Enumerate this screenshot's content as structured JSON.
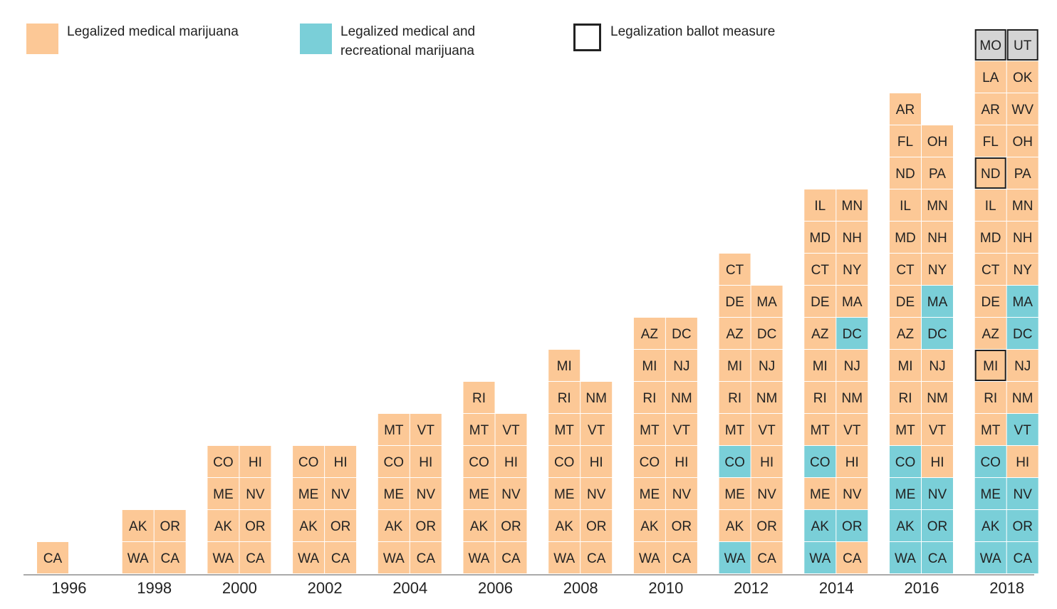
{
  "legend": {
    "medical_label": "Legalized medical marijuana",
    "recreational_label_line1": "Legalized medical and",
    "recreational_label_line2": "recreational marijuana",
    "ballot_label": "Legalization ballot measure"
  },
  "colors": {
    "medical": "#fcc896",
    "recreational": "#7acfd8",
    "ballot_pending": "#d4d4d4",
    "ballot_border": "#222222",
    "axis": "#aaaaaa"
  },
  "chart_data": {
    "type": "table",
    "note_status": "M = legalized medical marijuana, R = legalized medical and recreational marijuana, B = legalization ballot measure (not yet legal)",
    "columns": [
      {
        "year": "1996",
        "rows": [
          [
            {
              "s": "CA",
              "t": "M"
            }
          ]
        ]
      },
      {
        "year": "1998",
        "rows": [
          [
            {
              "s": "WA",
              "t": "M"
            },
            {
              "s": "CA",
              "t": "M"
            }
          ],
          [
            {
              "s": "AK",
              "t": "M"
            },
            {
              "s": "OR",
              "t": "M"
            }
          ]
        ]
      },
      {
        "year": "2000",
        "rows": [
          [
            {
              "s": "WA",
              "t": "M"
            },
            {
              "s": "CA",
              "t": "M"
            }
          ],
          [
            {
              "s": "AK",
              "t": "M"
            },
            {
              "s": "OR",
              "t": "M"
            }
          ],
          [
            {
              "s": "ME",
              "t": "M"
            },
            {
              "s": "NV",
              "t": "M"
            }
          ],
          [
            {
              "s": "CO",
              "t": "M"
            },
            {
              "s": "HI",
              "t": "M"
            }
          ]
        ]
      },
      {
        "year": "2002",
        "rows": [
          [
            {
              "s": "WA",
              "t": "M"
            },
            {
              "s": "CA",
              "t": "M"
            }
          ],
          [
            {
              "s": "AK",
              "t": "M"
            },
            {
              "s": "OR",
              "t": "M"
            }
          ],
          [
            {
              "s": "ME",
              "t": "M"
            },
            {
              "s": "NV",
              "t": "M"
            }
          ],
          [
            {
              "s": "CO",
              "t": "M"
            },
            {
              "s": "HI",
              "t": "M"
            }
          ]
        ]
      },
      {
        "year": "2004",
        "rows": [
          [
            {
              "s": "WA",
              "t": "M"
            },
            {
              "s": "CA",
              "t": "M"
            }
          ],
          [
            {
              "s": "AK",
              "t": "M"
            },
            {
              "s": "OR",
              "t": "M"
            }
          ],
          [
            {
              "s": "ME",
              "t": "M"
            },
            {
              "s": "NV",
              "t": "M"
            }
          ],
          [
            {
              "s": "CO",
              "t": "M"
            },
            {
              "s": "HI",
              "t": "M"
            }
          ],
          [
            {
              "s": "MT",
              "t": "M"
            },
            {
              "s": "VT",
              "t": "M"
            }
          ]
        ]
      },
      {
        "year": "2006",
        "rows": [
          [
            {
              "s": "WA",
              "t": "M"
            },
            {
              "s": "CA",
              "t": "M"
            }
          ],
          [
            {
              "s": "AK",
              "t": "M"
            },
            {
              "s": "OR",
              "t": "M"
            }
          ],
          [
            {
              "s": "ME",
              "t": "M"
            },
            {
              "s": "NV",
              "t": "M"
            }
          ],
          [
            {
              "s": "CO",
              "t": "M"
            },
            {
              "s": "HI",
              "t": "M"
            }
          ],
          [
            {
              "s": "MT",
              "t": "M"
            },
            {
              "s": "VT",
              "t": "M"
            }
          ],
          [
            {
              "s": "RI",
              "t": "M"
            }
          ]
        ]
      },
      {
        "year": "2008",
        "rows": [
          [
            {
              "s": "WA",
              "t": "M"
            },
            {
              "s": "CA",
              "t": "M"
            }
          ],
          [
            {
              "s": "AK",
              "t": "M"
            },
            {
              "s": "OR",
              "t": "M"
            }
          ],
          [
            {
              "s": "ME",
              "t": "M"
            },
            {
              "s": "NV",
              "t": "M"
            }
          ],
          [
            {
              "s": "CO",
              "t": "M"
            },
            {
              "s": "HI",
              "t": "M"
            }
          ],
          [
            {
              "s": "MT",
              "t": "M"
            },
            {
              "s": "VT",
              "t": "M"
            }
          ],
          [
            {
              "s": "RI",
              "t": "M"
            },
            {
              "s": "NM",
              "t": "M"
            }
          ],
          [
            {
              "s": "MI",
              "t": "M"
            }
          ]
        ]
      },
      {
        "year": "2010",
        "rows": [
          [
            {
              "s": "WA",
              "t": "M"
            },
            {
              "s": "CA",
              "t": "M"
            }
          ],
          [
            {
              "s": "AK",
              "t": "M"
            },
            {
              "s": "OR",
              "t": "M"
            }
          ],
          [
            {
              "s": "ME",
              "t": "M"
            },
            {
              "s": "NV",
              "t": "M"
            }
          ],
          [
            {
              "s": "CO",
              "t": "M"
            },
            {
              "s": "HI",
              "t": "M"
            }
          ],
          [
            {
              "s": "MT",
              "t": "M"
            },
            {
              "s": "VT",
              "t": "M"
            }
          ],
          [
            {
              "s": "RI",
              "t": "M"
            },
            {
              "s": "NM",
              "t": "M"
            }
          ],
          [
            {
              "s": "MI",
              "t": "M"
            },
            {
              "s": "NJ",
              "t": "M"
            }
          ],
          [
            {
              "s": "AZ",
              "t": "M"
            },
            {
              "s": "DC",
              "t": "M"
            }
          ]
        ]
      },
      {
        "year": "2012",
        "rows": [
          [
            {
              "s": "WA",
              "t": "R"
            },
            {
              "s": "CA",
              "t": "M"
            }
          ],
          [
            {
              "s": "AK",
              "t": "M"
            },
            {
              "s": "OR",
              "t": "M"
            }
          ],
          [
            {
              "s": "ME",
              "t": "M"
            },
            {
              "s": "NV",
              "t": "M"
            }
          ],
          [
            {
              "s": "CO",
              "t": "R"
            },
            {
              "s": "HI",
              "t": "M"
            }
          ],
          [
            {
              "s": "MT",
              "t": "M"
            },
            {
              "s": "VT",
              "t": "M"
            }
          ],
          [
            {
              "s": "RI",
              "t": "M"
            },
            {
              "s": "NM",
              "t": "M"
            }
          ],
          [
            {
              "s": "MI",
              "t": "M"
            },
            {
              "s": "NJ",
              "t": "M"
            }
          ],
          [
            {
              "s": "AZ",
              "t": "M"
            },
            {
              "s": "DC",
              "t": "M"
            }
          ],
          [
            {
              "s": "DE",
              "t": "M"
            },
            {
              "s": "MA",
              "t": "M"
            }
          ],
          [
            {
              "s": "CT",
              "t": "M"
            }
          ]
        ]
      },
      {
        "year": "2014",
        "rows": [
          [
            {
              "s": "WA",
              "t": "R"
            },
            {
              "s": "CA",
              "t": "M"
            }
          ],
          [
            {
              "s": "AK",
              "t": "R"
            },
            {
              "s": "OR",
              "t": "R"
            }
          ],
          [
            {
              "s": "ME",
              "t": "M"
            },
            {
              "s": "NV",
              "t": "M"
            }
          ],
          [
            {
              "s": "CO",
              "t": "R"
            },
            {
              "s": "HI",
              "t": "M"
            }
          ],
          [
            {
              "s": "MT",
              "t": "M"
            },
            {
              "s": "VT",
              "t": "M"
            }
          ],
          [
            {
              "s": "RI",
              "t": "M"
            },
            {
              "s": "NM",
              "t": "M"
            }
          ],
          [
            {
              "s": "MI",
              "t": "M"
            },
            {
              "s": "NJ",
              "t": "M"
            }
          ],
          [
            {
              "s": "AZ",
              "t": "M"
            },
            {
              "s": "DC",
              "t": "R"
            }
          ],
          [
            {
              "s": "DE",
              "t": "M"
            },
            {
              "s": "MA",
              "t": "M"
            }
          ],
          [
            {
              "s": "CT",
              "t": "M"
            },
            {
              "s": "NY",
              "t": "M"
            }
          ],
          [
            {
              "s": "MD",
              "t": "M"
            },
            {
              "s": "NH",
              "t": "M"
            }
          ],
          [
            {
              "s": "IL",
              "t": "M"
            },
            {
              "s": "MN",
              "t": "M"
            }
          ]
        ]
      },
      {
        "year": "2016",
        "rows": [
          [
            {
              "s": "WA",
              "t": "R"
            },
            {
              "s": "CA",
              "t": "R"
            }
          ],
          [
            {
              "s": "AK",
              "t": "R"
            },
            {
              "s": "OR",
              "t": "R"
            }
          ],
          [
            {
              "s": "ME",
              "t": "R"
            },
            {
              "s": "NV",
              "t": "R"
            }
          ],
          [
            {
              "s": "CO",
              "t": "R"
            },
            {
              "s": "HI",
              "t": "M"
            }
          ],
          [
            {
              "s": "MT",
              "t": "M"
            },
            {
              "s": "VT",
              "t": "M"
            }
          ],
          [
            {
              "s": "RI",
              "t": "M"
            },
            {
              "s": "NM",
              "t": "M"
            }
          ],
          [
            {
              "s": "MI",
              "t": "M"
            },
            {
              "s": "NJ",
              "t": "M"
            }
          ],
          [
            {
              "s": "AZ",
              "t": "M"
            },
            {
              "s": "DC",
              "t": "R"
            }
          ],
          [
            {
              "s": "DE",
              "t": "M"
            },
            {
              "s": "MA",
              "t": "R"
            }
          ],
          [
            {
              "s": "CT",
              "t": "M"
            },
            {
              "s": "NY",
              "t": "M"
            }
          ],
          [
            {
              "s": "MD",
              "t": "M"
            },
            {
              "s": "NH",
              "t": "M"
            }
          ],
          [
            {
              "s": "IL",
              "t": "M"
            },
            {
              "s": "MN",
              "t": "M"
            }
          ],
          [
            {
              "s": "ND",
              "t": "M"
            },
            {
              "s": "PA",
              "t": "M"
            }
          ],
          [
            {
              "s": "FL",
              "t": "M"
            },
            {
              "s": "OH",
              "t": "M"
            }
          ],
          [
            {
              "s": "AR",
              "t": "M"
            }
          ]
        ]
      },
      {
        "year": "2018",
        "rows": [
          [
            {
              "s": "WA",
              "t": "R"
            },
            {
              "s": "CA",
              "t": "R"
            }
          ],
          [
            {
              "s": "AK",
              "t": "R"
            },
            {
              "s": "OR",
              "t": "R"
            }
          ],
          [
            {
              "s": "ME",
              "t": "R"
            },
            {
              "s": "NV",
              "t": "R"
            }
          ],
          [
            {
              "s": "CO",
              "t": "R"
            },
            {
              "s": "HI",
              "t": "M"
            }
          ],
          [
            {
              "s": "MT",
              "t": "M"
            },
            {
              "s": "VT",
              "t": "R"
            }
          ],
          [
            {
              "s": "RI",
              "t": "M"
            },
            {
              "s": "NM",
              "t": "M"
            }
          ],
          [
            {
              "s": "MI",
              "t": "M",
              "ballot": true
            },
            {
              "s": "NJ",
              "t": "M"
            }
          ],
          [
            {
              "s": "AZ",
              "t": "M"
            },
            {
              "s": "DC",
              "t": "R"
            }
          ],
          [
            {
              "s": "DE",
              "t": "M"
            },
            {
              "s": "MA",
              "t": "R"
            }
          ],
          [
            {
              "s": "CT",
              "t": "M"
            },
            {
              "s": "NY",
              "t": "M"
            }
          ],
          [
            {
              "s": "MD",
              "t": "M"
            },
            {
              "s": "NH",
              "t": "M"
            }
          ],
          [
            {
              "s": "IL",
              "t": "M"
            },
            {
              "s": "MN",
              "t": "M"
            }
          ],
          [
            {
              "s": "ND",
              "t": "M",
              "ballot": true
            },
            {
              "s": "PA",
              "t": "M"
            }
          ],
          [
            {
              "s": "FL",
              "t": "M"
            },
            {
              "s": "OH",
              "t": "M"
            }
          ],
          [
            {
              "s": "AR",
              "t": "M"
            },
            {
              "s": "WV",
              "t": "M"
            }
          ],
          [
            {
              "s": "LA",
              "t": "M"
            },
            {
              "s": "OK",
              "t": "M"
            }
          ],
          [
            {
              "s": "MO",
              "t": "B",
              "ballot": true
            },
            {
              "s": "UT",
              "t": "B",
              "ballot": true
            }
          ]
        ]
      }
    ]
  }
}
